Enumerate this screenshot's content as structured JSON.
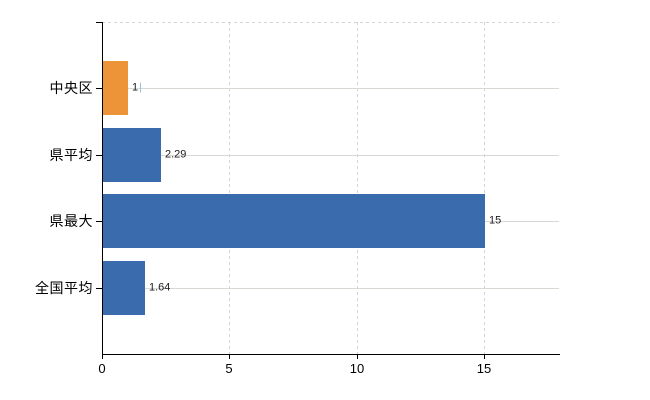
{
  "chart_data": {
    "type": "bar",
    "orientation": "horizontal",
    "title": "",
    "xlabel": "",
    "ylabel": "",
    "categories": [
      "中央区",
      "県平均",
      "県最大",
      "全国平均"
    ],
    "values": [
      1,
      2.29,
      15,
      1.64
    ],
    "value_labels": [
      "1",
      "2.29",
      "15",
      "1.64"
    ],
    "bar_colors": [
      "#EC9437",
      "#3A6CAD",
      "#3A6CAD",
      "#3A6CAD"
    ],
    "x_ticks": [
      0,
      5,
      10,
      15
    ],
    "x_tick_labels": [
      "0",
      "5",
      "10",
      "15"
    ],
    "xlim": [
      0,
      18
    ],
    "grid": true,
    "gridline_h_style": "solid",
    "gridline_v_style": "dashed",
    "legend_position": "none",
    "edit_caret_index": 0,
    "colors": {
      "axis": "#000000",
      "h_gridline": "#D5DAD2",
      "v_gridline": "#D4D1D7",
      "plot_top_border": "#D4D1D7",
      "value_label_text": "#1c1c1c",
      "category_label_text": "#000000",
      "text_caret": "#9FC0DE",
      "background": "#FFFFFF"
    }
  }
}
